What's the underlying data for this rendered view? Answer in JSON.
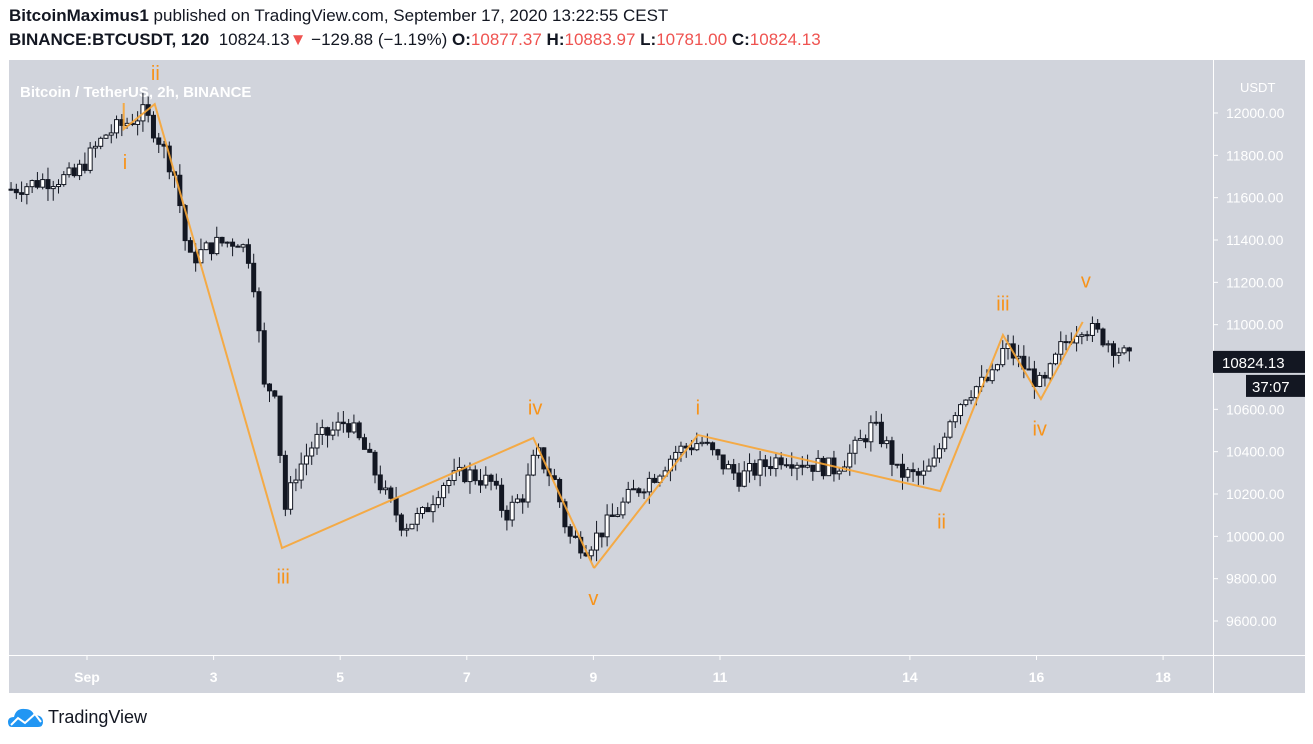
{
  "header": {
    "author": "BitcoinMaximus1",
    "published": "published on TradingView.com, September 17, 2020 13:22:55 CEST",
    "symbol": "BINANCE:BTCUSDT, 120",
    "last": "10824.13",
    "change": "−129.88 (−1.19%)",
    "o_label": "O:",
    "o": "10877.37",
    "h_label": "H:",
    "h": "10883.97",
    "l_label": "L:",
    "l": "10781.00",
    "c_label": "C:",
    "c": "10824.13"
  },
  "footer": {
    "brand": "TradingView"
  },
  "colors": {
    "background": "#d1d4dc",
    "up": "#ffffff",
    "down": "#131722",
    "wave": "#f7a535",
    "label": "#f7931a",
    "down_arrow": "#ef5350"
  },
  "chart_data": {
    "type": "candlestick",
    "title": "Bitcoin / TetherUS, 2h, BINANCE",
    "currency": "USDT",
    "ylim": [
      9450,
      12250
    ],
    "yticks": [
      "12000.00",
      "11800.00",
      "11600.00",
      "11400.00",
      "11200.00",
      "11000.00",
      "10600.00",
      "10400.00",
      "10200.00",
      "10000.00",
      "9800.00",
      "9600.00"
    ],
    "ytick_values": [
      12000,
      11800,
      11600,
      11400,
      11200,
      11000,
      10600,
      10400,
      10200,
      10000,
      9800,
      9600
    ],
    "xticks": [
      {
        "day": 1,
        "label": "Sep"
      },
      {
        "day": 3,
        "label": "3"
      },
      {
        "day": 5,
        "label": "5"
      },
      {
        "day": 7,
        "label": "7"
      },
      {
        "day": 9,
        "label": "9"
      },
      {
        "day": 11,
        "label": "11"
      },
      {
        "day": 14,
        "label": "14"
      },
      {
        "day": 16,
        "label": "16"
      },
      {
        "day": 18,
        "label": "18"
      }
    ],
    "last_price": "10824.13",
    "countdown": "37:07",
    "approx_close_path": [
      [
        30.8,
        11640
      ],
      [
        31.3,
        11680
      ],
      [
        31.8,
        11700
      ],
      [
        32.3,
        11900
      ],
      [
        32.6,
        11950
      ],
      [
        32.9,
        12000
      ],
      [
        33.1,
        11900
      ],
      [
        33.4,
        11700
      ],
      [
        33.6,
        11300
      ],
      [
        34.0,
        11380
      ],
      [
        34.4,
        11400
      ],
      [
        34.6,
        11300
      ],
      [
        34.8,
        10700
      ],
      [
        35.0,
        10700
      ],
      [
        35.1,
        10100
      ],
      [
        35.3,
        10300
      ],
      [
        35.6,
        10450
      ],
      [
        35.9,
        10500
      ],
      [
        36.1,
        10550
      ],
      [
        36.4,
        10400
      ],
      [
        36.7,
        10200
      ],
      [
        37.0,
        10050
      ],
      [
        37.3,
        10100
      ],
      [
        37.6,
        10250
      ],
      [
        38.0,
        10300
      ],
      [
        38.4,
        10250
      ],
      [
        38.6,
        10100
      ],
      [
        38.9,
        10200
      ],
      [
        39.1,
        10400
      ],
      [
        39.4,
        10250
      ],
      [
        39.6,
        10000
      ],
      [
        39.9,
        9950
      ],
      [
        40.2,
        10050
      ],
      [
        40.6,
        10200
      ],
      [
        41.0,
        10300
      ],
      [
        41.3,
        10400
      ],
      [
        41.7,
        10450
      ],
      [
        42.0,
        10350
      ],
      [
        42.3,
        10280
      ],
      [
        42.6,
        10320
      ],
      [
        43.0,
        10380
      ],
      [
        43.3,
        10350
      ],
      [
        43.8,
        10320
      ],
      [
        44.1,
        10400
      ],
      [
        44.4,
        10520
      ],
      [
        44.6,
        10450
      ],
      [
        44.8,
        10300
      ],
      [
        45.2,
        10280
      ],
      [
        45.4,
        10350
      ],
      [
        45.6,
        10550
      ],
      [
        45.9,
        10680
      ],
      [
        46.3,
        10750
      ],
      [
        46.5,
        10900
      ],
      [
        46.8,
        10800
      ],
      [
        47.1,
        10700
      ],
      [
        47.4,
        10900
      ],
      [
        47.7,
        11000
      ],
      [
        48.0,
        10950
      ],
      [
        48.3,
        10880
      ],
      [
        48.5,
        10824
      ]
    ],
    "waves": [
      {
        "points": [
          [
            1.58,
            12047
          ],
          [
            1.58,
            11924
          ],
          [
            2.07,
            12042
          ],
          [
            4.08,
            9945
          ],
          [
            8.05,
            10465
          ],
          [
            9.01,
            9850
          ]
        ],
        "labels": [
          {
            "text": "i",
            "day": 1.6,
            "price": 11760
          },
          {
            "text": "ii",
            "day": 2.08,
            "price": 12180
          },
          {
            "text": "iii",
            "day": 4.1,
            "price": 9800
          },
          {
            "text": "iv",
            "day": 8.08,
            "price": 10600
          },
          {
            "text": "v",
            "day": 9.0,
            "price": 9700
          }
        ]
      },
      {
        "points": [
          [
            9.01,
            9850
          ],
          [
            10.65,
            10479
          ],
          [
            14.48,
            10214
          ],
          [
            15.47,
            10951
          ],
          [
            16.07,
            10649
          ],
          [
            16.73,
            11013
          ]
        ],
        "labels": [
          {
            "text": "i",
            "day": 10.65,
            "price": 10600
          },
          {
            "text": "ii",
            "day": 14.5,
            "price": 10060
          },
          {
            "text": "iii",
            "day": 15.47,
            "price": 11090
          },
          {
            "text": "iv",
            "day": 16.05,
            "price": 10500
          },
          {
            "text": "v",
            "day": 16.78,
            "price": 11200
          }
        ]
      }
    ]
  }
}
